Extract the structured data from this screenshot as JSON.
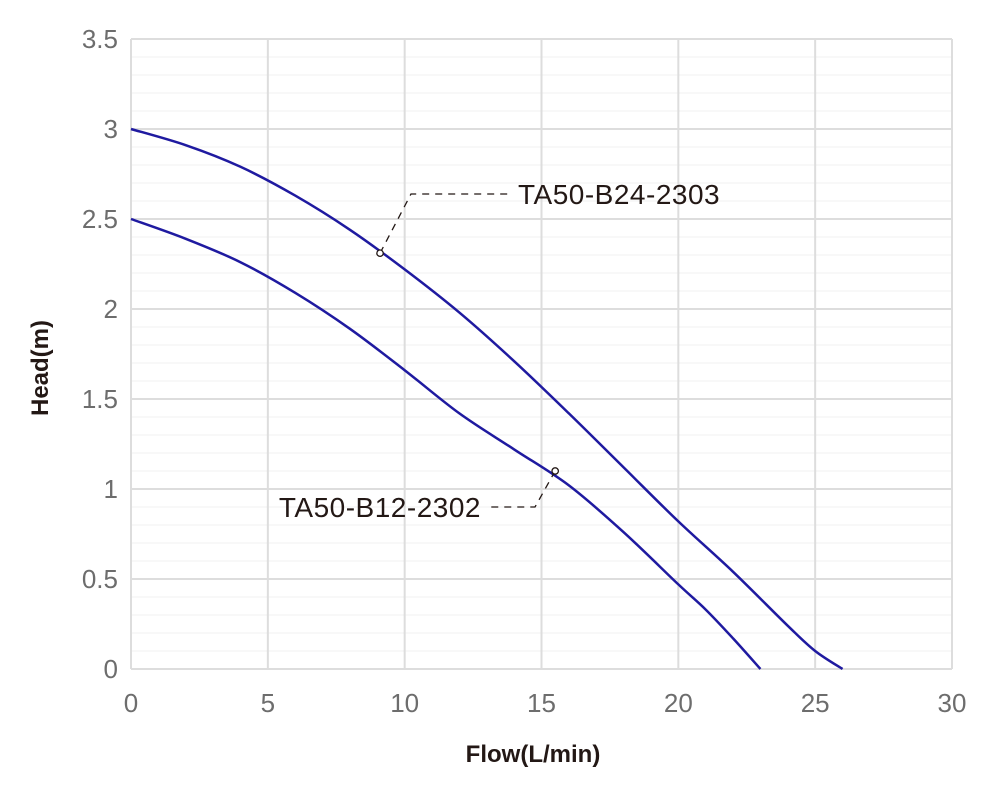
{
  "chart_data": {
    "type": "line",
    "xlabel": "Flow(L/min)",
    "ylabel": "Head(m)",
    "xlim": [
      0,
      30
    ],
    "ylim": [
      0,
      3.5
    ],
    "x_ticks": [
      "0",
      "5",
      "10",
      "15",
      "20",
      "25",
      "30"
    ],
    "y_ticks": [
      "0",
      "0.5",
      "1",
      "1.5",
      "2",
      "2.5",
      "3",
      "3.5"
    ],
    "grid": true,
    "line_color": "#1f1aa0",
    "series": [
      {
        "name": "TA50-B24-2303",
        "x": [
          0,
          2,
          4,
          6,
          8,
          10,
          12,
          14,
          16,
          18,
          20,
          22,
          24,
          25,
          26
        ],
        "y": [
          3.0,
          2.91,
          2.79,
          2.63,
          2.44,
          2.22,
          1.98,
          1.71,
          1.42,
          1.12,
          0.82,
          0.54,
          0.24,
          0.1,
          0.0
        ]
      },
      {
        "name": "TA50-B12-2302",
        "x": [
          0,
          2,
          4,
          6,
          8,
          10,
          12,
          14,
          16,
          18,
          20,
          21,
          22,
          23
        ],
        "y": [
          2.5,
          2.39,
          2.26,
          2.09,
          1.89,
          1.66,
          1.42,
          1.22,
          1.02,
          0.76,
          0.47,
          0.33,
          0.17,
          0.0
        ]
      }
    ],
    "annotations": [
      {
        "text": "TA50-B24-2303",
        "series": 0,
        "at_x": 9.1,
        "at_y": 2.31
      },
      {
        "text": "TA50-B12-2302",
        "series": 1,
        "at_x": 15.5,
        "at_y": 1.1
      }
    ]
  }
}
